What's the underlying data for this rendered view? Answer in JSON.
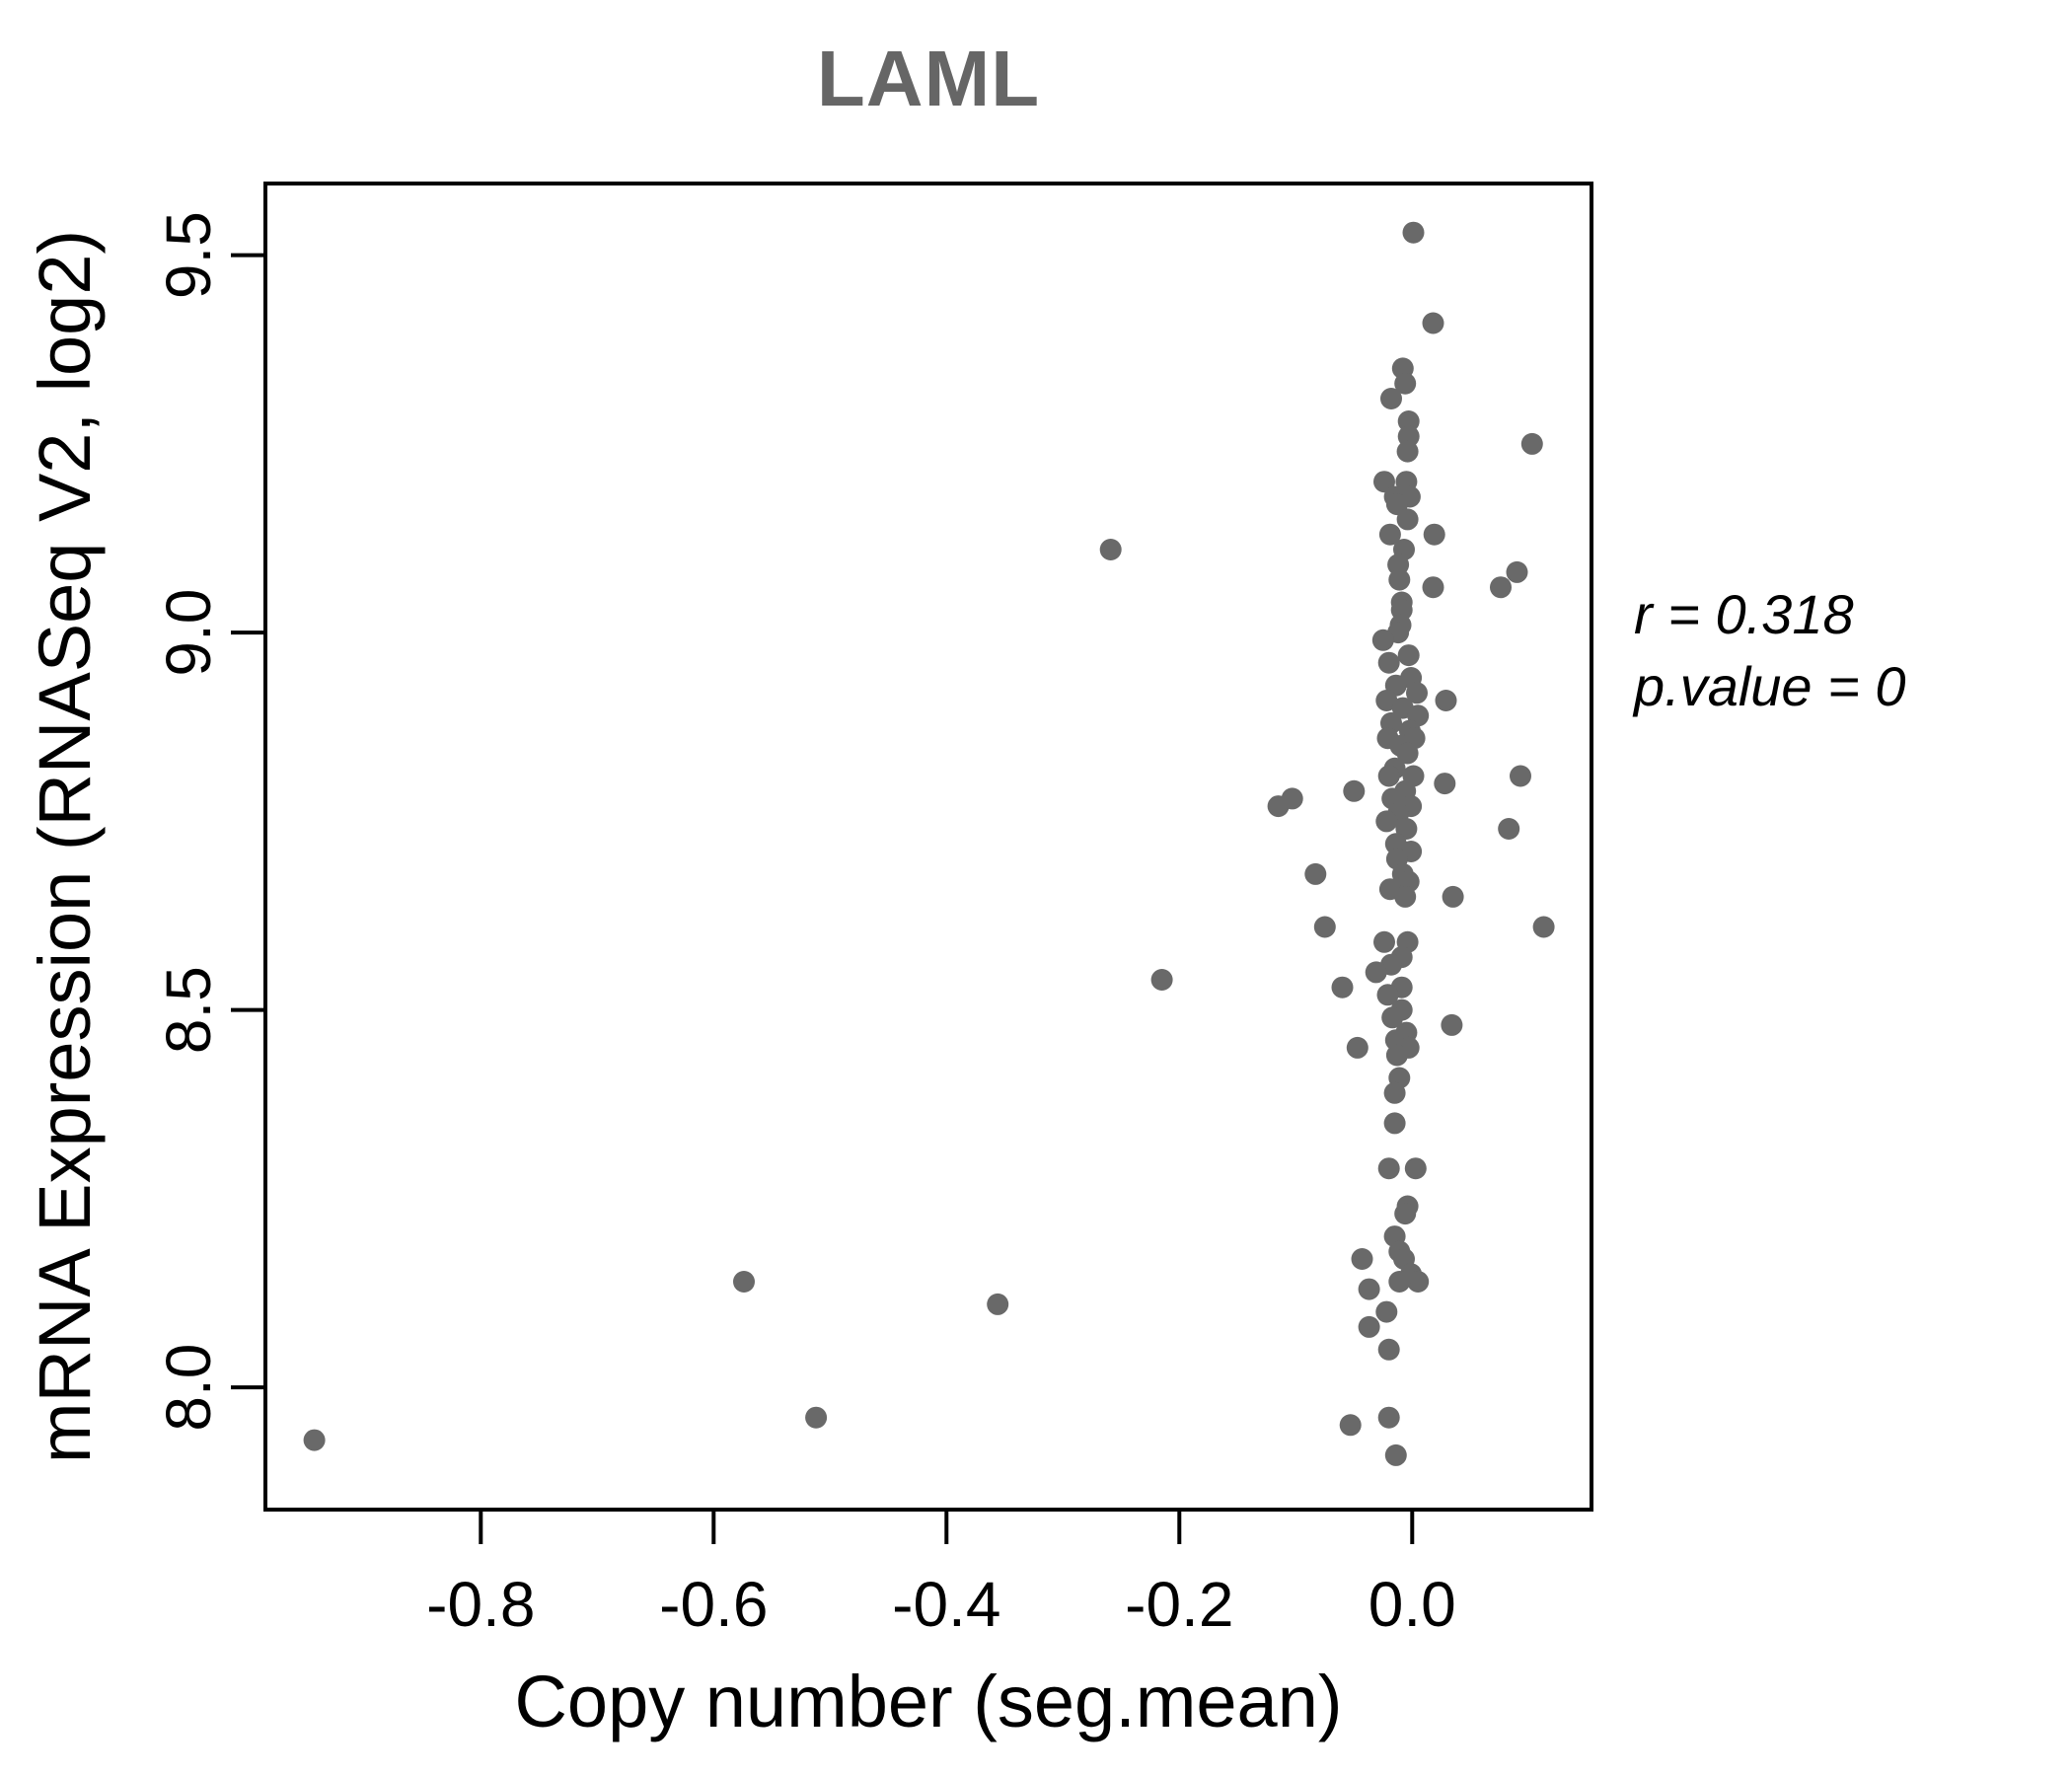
{
  "chart_data": {
    "type": "scatter",
    "title": "LAML",
    "title_color": "#666666",
    "xlabel": "Copy number (seg.mean)",
    "ylabel": "mRNA Expression (RNASeq V2, log2)",
    "annotation": {
      "line1": "r = 0.318",
      "line2": "p.value = 0"
    },
    "x_ticks": [
      -0.8,
      -0.6,
      -0.4,
      -0.2,
      0.0
    ],
    "x_tick_labels": [
      "-0.8",
      "-0.6",
      "-0.4",
      "-0.2",
      "0.0"
    ],
    "y_ticks": [
      8.0,
      8.5,
      9.0,
      9.5
    ],
    "y_tick_labels": [
      "8.0",
      "8.5",
      "9.0",
      "9.5"
    ],
    "xlim": [
      -0.985,
      0.154
    ],
    "ylim": [
      7.838,
      9.595
    ],
    "grid": false,
    "legend": "none",
    "axis_color": "#000000",
    "point_color": "#696969",
    "point_radius": 11,
    "points": [
      [
        -0.943,
        7.93
      ],
      [
        -0.574,
        8.14
      ],
      [
        -0.512,
        7.96
      ],
      [
        -0.356,
        8.11
      ],
      [
        -0.259,
        9.11
      ],
      [
        -0.215,
        8.54
      ],
      [
        -0.115,
        8.77
      ],
      [
        -0.103,
        8.78
      ],
      [
        -0.083,
        8.68
      ],
      [
        -0.075,
        8.61
      ],
      [
        -0.06,
        8.53
      ],
      [
        -0.053,
        7.95
      ],
      [
        -0.05,
        8.79
      ],
      [
        -0.047,
        8.45
      ],
      [
        -0.043,
        8.17
      ],
      [
        -0.037,
        8.13
      ],
      [
        -0.037,
        8.08
      ],
      [
        0.103,
        9.25
      ],
      [
        0.09,
        9.08
      ],
      [
        0.076,
        9.06
      ],
      [
        0.018,
        9.41
      ],
      [
        0.019,
        9.13
      ],
      [
        0.018,
        9.06
      ],
      [
        0.029,
        8.91
      ],
      [
        0.093,
        8.81
      ],
      [
        0.028,
        8.8
      ],
      [
        0.083,
        8.74
      ],
      [
        0.035,
        8.65
      ],
      [
        0.113,
        8.61
      ],
      [
        0.034,
        8.48
      ],
      [
        0.001,
        9.53
      ],
      [
        -0.008,
        9.35
      ],
      [
        -0.006,
        9.33
      ],
      [
        -0.018,
        9.31
      ],
      [
        -0.003,
        9.28
      ],
      [
        -0.003,
        9.26
      ],
      [
        -0.004,
        9.24
      ],
      [
        -0.024,
        9.2
      ],
      [
        -0.005,
        9.2
      ],
      [
        -0.015,
        9.18
      ],
      [
        -0.002,
        9.18
      ],
      [
        -0.013,
        9.17
      ],
      [
        -0.004,
        9.15
      ],
      [
        -0.019,
        9.13
      ],
      [
        -0.007,
        9.11
      ],
      [
        -0.012,
        9.09
      ],
      [
        -0.011,
        9.07
      ],
      [
        -0.009,
        9.04
      ],
      [
        -0.009,
        9.03
      ],
      [
        -0.01,
        9.01
      ],
      [
        -0.012,
        9.0
      ],
      [
        -0.025,
        8.99
      ],
      [
        -0.003,
        8.97
      ],
      [
        -0.02,
        8.96
      ],
      [
        -0.001,
        8.94
      ],
      [
        -0.014,
        8.93
      ],
      [
        0.004,
        8.92
      ],
      [
        -0.022,
        8.91
      ],
      [
        -0.008,
        8.9
      ],
      [
        0.005,
        8.89
      ],
      [
        -0.018,
        8.88
      ],
      [
        -0.002,
        8.87
      ],
      [
        -0.021,
        8.86
      ],
      [
        0.002,
        8.86
      ],
      [
        -0.01,
        8.85
      ],
      [
        -0.004,
        8.84
      ],
      [
        -0.015,
        8.82
      ],
      [
        0.001,
        8.81
      ],
      [
        -0.02,
        8.81
      ],
      [
        -0.006,
        8.79
      ],
      [
        -0.017,
        8.78
      ],
      [
        -0.001,
        8.77
      ],
      [
        -0.012,
        8.76
      ],
      [
        -0.022,
        8.75
      ],
      [
        -0.005,
        8.74
      ],
      [
        -0.014,
        8.72
      ],
      [
        -0.001,
        8.71
      ],
      [
        -0.013,
        8.7
      ],
      [
        -0.008,
        8.68
      ],
      [
        -0.003,
        8.67
      ],
      [
        -0.019,
        8.66
      ],
      [
        -0.006,
        8.65
      ],
      [
        -0.004,
        8.59
      ],
      [
        -0.024,
        8.59
      ],
      [
        -0.009,
        8.57
      ],
      [
        -0.018,
        8.56
      ],
      [
        -0.031,
        8.55
      ],
      [
        -0.009,
        8.53
      ],
      [
        -0.021,
        8.52
      ],
      [
        -0.009,
        8.5
      ],
      [
        -0.017,
        8.49
      ],
      [
        -0.005,
        8.47
      ],
      [
        -0.014,
        8.46
      ],
      [
        -0.003,
        8.45
      ],
      [
        -0.013,
        8.44
      ],
      [
        -0.011,
        8.41
      ],
      [
        -0.015,
        8.39
      ],
      [
        -0.015,
        8.35
      ],
      [
        -0.02,
        8.29
      ],
      [
        0.003,
        8.29
      ],
      [
        -0.004,
        8.24
      ],
      [
        -0.006,
        8.23
      ],
      [
        -0.015,
        8.2
      ],
      [
        -0.011,
        8.18
      ],
      [
        -0.007,
        8.17
      ],
      [
        -0.001,
        8.15
      ],
      [
        0.005,
        8.14
      ],
      [
        -0.011,
        8.14
      ],
      [
        -0.022,
        8.1
      ],
      [
        -0.02,
        8.05
      ],
      [
        -0.02,
        7.96
      ],
      [
        -0.014,
        7.91
      ]
    ]
  }
}
